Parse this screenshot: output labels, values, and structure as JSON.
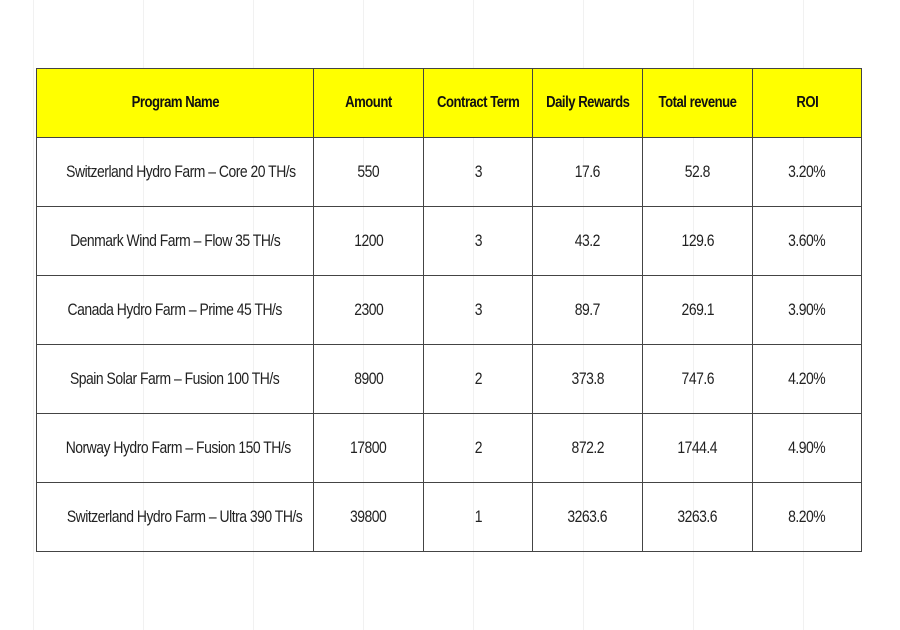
{
  "table": {
    "header": [
      "Program Name",
      "Amount",
      "Contract Term",
      "Daily Rewards",
      "Total revenue",
      "ROI"
    ],
    "rows": [
      [
        "Switzerland Hydro Farm – Core 20 TH/s",
        "550",
        "3",
        "17.6",
        "52.8",
        "3.20%"
      ],
      [
        "Denmark Wind Farm – Flow 35 TH/s",
        "1200",
        "3",
        "43.2",
        "129.6",
        "3.60%"
      ],
      [
        "Canada Hydro Farm – Prime 45 TH/s",
        "2300",
        "3",
        "89.7",
        "269.1",
        "3.90%"
      ],
      [
        "Spain Solar Farm – Fusion 100 TH/s",
        "8900",
        "2",
        "373.8",
        "747.6",
        "4.20%"
      ],
      [
        "Norway Hydro Farm – Fusion 150 TH/s",
        "17800",
        "2",
        "872.2",
        "1744.4",
        "4.90%"
      ],
      [
        "Switzerland Hydro Farm – Ultra 390 TH/s",
        "39800",
        "1",
        "3263.6",
        "3263.6",
        "8.20%"
      ]
    ]
  }
}
